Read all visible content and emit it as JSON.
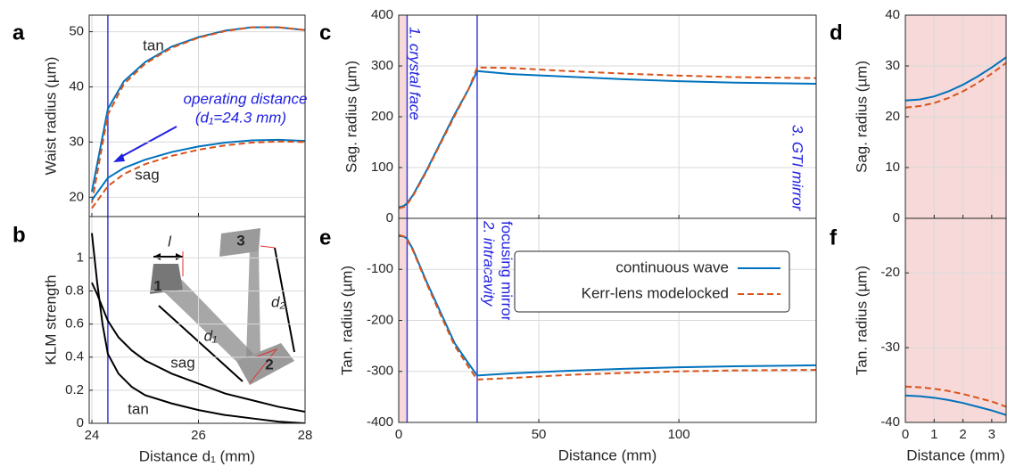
{
  "chart_data": [
    {
      "type": "line",
      "panel": "a",
      "ylabel": "Waist radius (µm)",
      "x": [
        24,
        24.3,
        24.6,
        25,
        25.5,
        26,
        26.5,
        27,
        27.5,
        28
      ],
      "series": [
        {
          "color": "#0072bd",
          "style": "solid",
          "values": [
            21,
            36,
            41,
            44.5,
            47.3,
            49,
            50.2,
            50.8,
            50.8,
            50.3
          ]
        },
        {
          "color": "#d95319",
          "style": "dashed",
          "values": [
            19,
            35,
            40.5,
            44.2,
            47.1,
            48.9,
            50.1,
            50.8,
            50.8,
            50.3
          ]
        },
        {
          "color": "#0072bd",
          "style": "solid",
          "values": [
            19.5,
            23.5,
            25.3,
            26.8,
            28.2,
            29.2,
            29.9,
            30.3,
            30.4,
            30.2
          ]
        },
        {
          "color": "#d95319",
          "style": "dashed",
          "values": [
            18,
            22,
            24.2,
            26,
            27.5,
            28.6,
            29.4,
            29.9,
            30.1,
            30
          ]
        }
      ],
      "xlim": [
        23.95,
        28
      ],
      "ylim": [
        16.5,
        53
      ],
      "xticks": [
        24,
        26,
        28
      ],
      "yticks": [
        20,
        30,
        40,
        50
      ],
      "show_xtick_labels": false,
      "grid": true,
      "vlines": [
        24.3
      ],
      "annotations": [
        "tan",
        "operating distance",
        "(d₁=24.3 mm)",
        "sag"
      ]
    },
    {
      "type": "line",
      "panel": "b",
      "ylabel": "KLM strength",
      "xlabel": "Distance d₁ (mm)",
      "x": [
        24,
        24.1,
        24.2,
        24.3,
        24.5,
        24.75,
        25,
        25.5,
        26,
        26.5,
        27,
        27.5,
        28
      ],
      "series": [
        {
          "color": "#000000",
          "style": "solid",
          "values": [
            1.15,
            0.85,
            0.6,
            0.42,
            0.3,
            0.22,
            0.17,
            0.12,
            0.08,
            0.05,
            0.03,
            0.01,
            0
          ]
        },
        {
          "color": "#000000",
          "style": "solid",
          "values": [
            0.85,
            0.78,
            0.7,
            0.62,
            0.52,
            0.44,
            0.38,
            0.3,
            0.24,
            0.18,
            0.14,
            0.1,
            0.07
          ]
        }
      ],
      "xlim": [
        23.95,
        28
      ],
      "ylim": [
        0,
        1.25
      ],
      "xticks": [
        24,
        26,
        28
      ],
      "yticks": [
        0,
        0.2,
        0.4,
        0.6,
        0.8,
        1
      ],
      "show_xtick_labels": true,
      "grid": true,
      "vlines": [
        24.3
      ],
      "annotations": [
        "sag",
        "tan"
      ],
      "inset_labels": [
        "l",
        "1",
        "2",
        "3",
        "d₁",
        "d₂"
      ]
    },
    {
      "type": "line",
      "panel": "c",
      "ylabel": "Sag. radius (µm)",
      "x": [
        0,
        1,
        2,
        3,
        5,
        10,
        15,
        20,
        25,
        28,
        40,
        60,
        80,
        100,
        120,
        149
      ],
      "series": [
        {
          "color": "#0072bd",
          "style": "solid",
          "values": [
            22,
            23,
            25,
            30,
            45,
            95,
            150,
            205,
            255,
            290,
            284,
            279,
            274,
            270,
            267,
            265
          ]
        },
        {
          "color": "#d95319",
          "style": "dashed",
          "values": [
            20,
            21,
            23,
            28,
            43,
            93,
            148,
            202,
            255,
            297,
            296,
            290,
            285,
            281,
            278,
            276
          ]
        }
      ],
      "xlim": [
        0,
        149
      ],
      "ylim": [
        0,
        400
      ],
      "xticks": [
        0,
        50,
        100
      ],
      "yticks": [
        0,
        100,
        200,
        300,
        400
      ],
      "show_xtick_labels": false,
      "grid": true,
      "vlines": [
        3,
        28
      ],
      "shade": [
        0,
        3
      ],
      "annotations": [
        "1. crystal face",
        "2. intracavity",
        "focusing mirror",
        "3. GTI mirror"
      ]
    },
    {
      "type": "line",
      "panel": "d",
      "ylabel": "Sag. radius (µm)",
      "x": [
        0,
        0.5,
        1,
        1.5,
        2,
        2.5,
        3,
        3.5
      ],
      "series": [
        {
          "color": "#0072bd",
          "style": "solid",
          "values": [
            23.2,
            23.4,
            24,
            25,
            26.3,
            27.9,
            29.7,
            31.7
          ]
        },
        {
          "color": "#d95319",
          "style": "dashed",
          "values": [
            21.8,
            22.1,
            22.7,
            23.7,
            25,
            26.6,
            28.5,
            30.6
          ]
        }
      ],
      "xlim": [
        0,
        3.5
      ],
      "ylim": [
        0,
        40
      ],
      "xticks": [
        0,
        1,
        2,
        3
      ],
      "yticks": [
        0,
        10,
        20,
        30,
        40
      ],
      "show_xtick_labels": false,
      "grid": true,
      "shade": [
        0,
        3.5
      ]
    },
    {
      "type": "line",
      "panel": "e",
      "ylabel": "Tan. radius (µm)",
      "xlabel": "Distance (mm)",
      "x": [
        0,
        1,
        2,
        3,
        5,
        10,
        15,
        20,
        25,
        28,
        40,
        60,
        80,
        100,
        120,
        149
      ],
      "series": [
        {
          "name": "continuous wave",
          "color": "#0072bd",
          "style": "solid",
          "values": [
            -35,
            -35,
            -36,
            -40,
            -60,
            -125,
            -185,
            -245,
            -285,
            -308,
            -304,
            -299,
            -295,
            -292,
            -290,
            -288
          ]
        },
        {
          "name": "Kerr-lens modelocked",
          "color": "#d95319",
          "style": "dashed",
          "values": [
            -33,
            -34,
            -36,
            -42,
            -62,
            -128,
            -190,
            -250,
            -292,
            -316,
            -313,
            -307,
            -303,
            -300,
            -298,
            -297
          ]
        }
      ],
      "xlim": [
        0,
        149
      ],
      "ylim": [
        -400,
        0
      ],
      "xticks": [
        0,
        50,
        100
      ],
      "yticks": [
        -400,
        -300,
        -200,
        -100
      ],
      "show_xtick_labels": true,
      "grid": true,
      "vlines": [
        3,
        28
      ],
      "shade": [
        0,
        3
      ],
      "legend": "upper right"
    },
    {
      "type": "line",
      "panel": "f",
      "ylabel": "Tan. radius (µm)",
      "xlabel": "Distance (mm)",
      "x": [
        0,
        0.5,
        1,
        1.5,
        2,
        2.5,
        3,
        3.5
      ],
      "series": [
        {
          "color": "#0072bd",
          "style": "solid",
          "values": [
            -36.4,
            -36.5,
            -36.7,
            -37,
            -37.4,
            -37.9,
            -38.4,
            -39
          ]
        },
        {
          "color": "#d95319",
          "style": "dashed",
          "values": [
            -35.2,
            -35.3,
            -35.5,
            -35.8,
            -36.2,
            -36.7,
            -37.2,
            -37.9
          ]
        }
      ],
      "xlim": [
        0,
        3.5
      ],
      "ylim": [
        -40,
        -12.7
      ],
      "xticks": [
        0,
        1,
        2,
        3
      ],
      "yticks": [
        -40,
        -30,
        -20
      ],
      "show_xtick_labels": true,
      "grid": true,
      "shade": [
        0,
        3.5
      ]
    }
  ]
}
